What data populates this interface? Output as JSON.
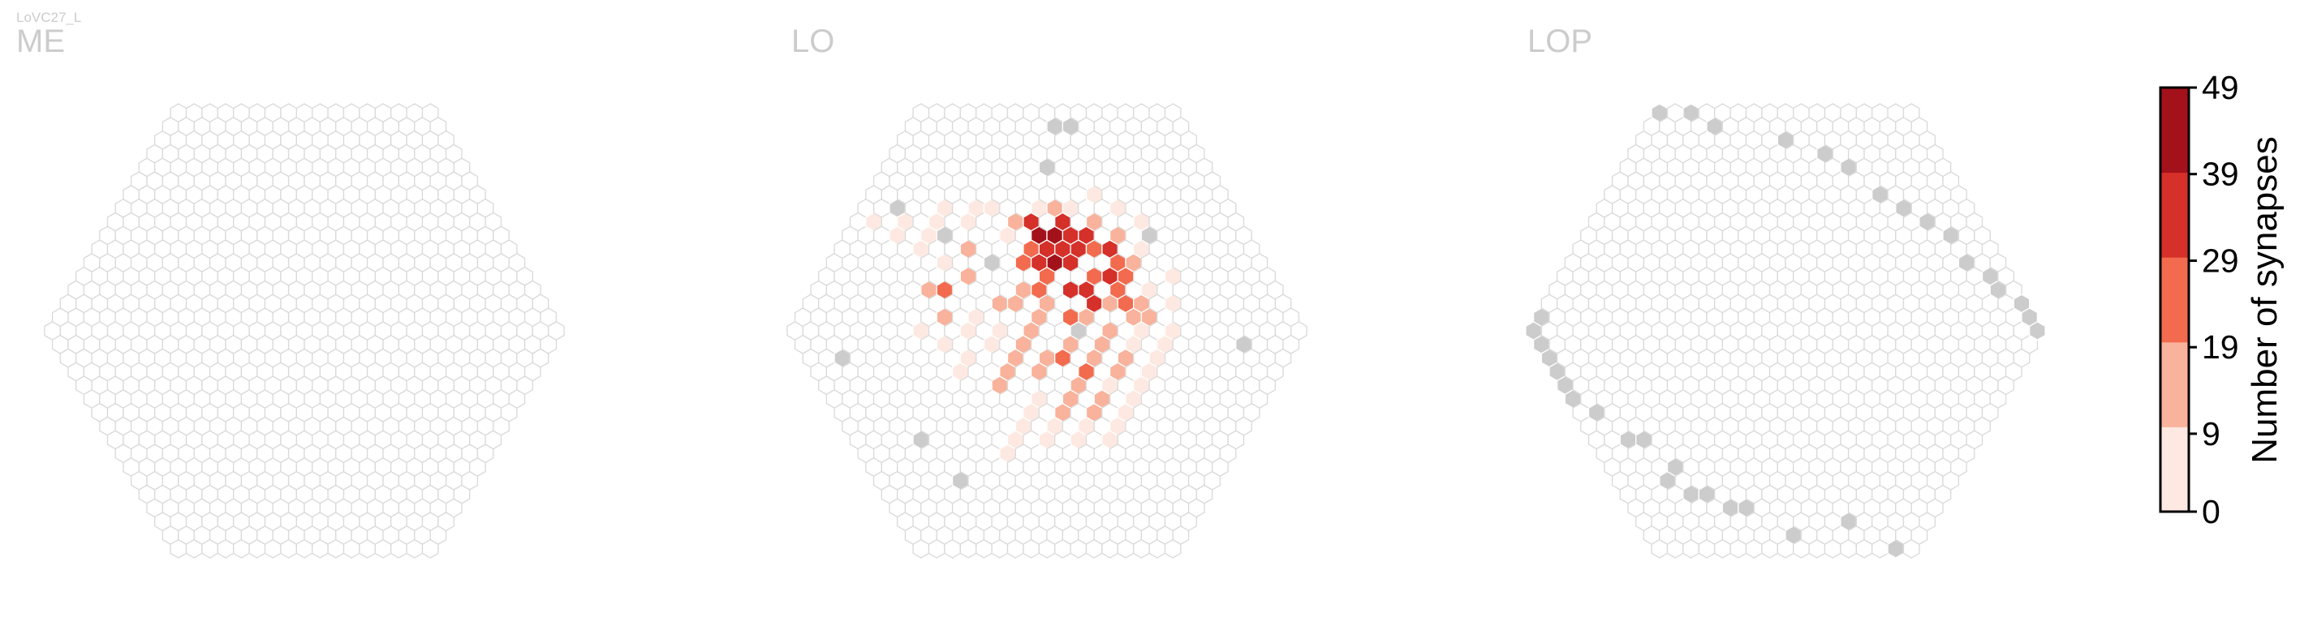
{
  "cell_type_label": "LoVC27_L",
  "colors": {
    "hex_edge": "#d9d9d9",
    "hex_fill_empty": "#ffffff",
    "hex_fill_other": "#cccccc",
    "panel_title": "#cccccc",
    "colormap": [
      "#fde9e1",
      "#f9b29b",
      "#f26b4f",
      "#d5302a",
      "#a3121a"
    ]
  },
  "chart_data": {
    "type": "heatmap",
    "layout": "hexagonal columns in three optic-lobe neuropils",
    "panels": [
      {
        "name": "ME",
        "title": "ME",
        "radius_in_cells": 16,
        "occupied_columns": [],
        "synapse_columns": []
      },
      {
        "name": "LO",
        "title": "LO",
        "radius_in_cells": 16,
        "occupied_columns": [
          [
            -12,
            8
          ],
          [
            -11,
            11
          ],
          [
            -14,
            2
          ],
          [
            -15,
            -3
          ],
          [
            -16,
            -4
          ],
          [
            -11,
            -15
          ],
          [
            -9,
            -13
          ],
          [
            -7,
            -11
          ],
          [
            -5,
            -9
          ],
          [
            -3,
            -7
          ],
          [
            -1,
            -5
          ],
          [
            6,
            -12
          ],
          [
            2,
            0
          ],
          [
            8,
            -15
          ],
          [
            9,
            -15
          ],
          [
            12,
            1
          ],
          [
            10,
            -7
          ]
        ],
        "synapse_columns": [
          [
            3,
            -7,
            42
          ],
          [
            4,
            -6,
            39
          ],
          [
            5,
            -8,
            38
          ],
          [
            5,
            -6,
            36
          ],
          [
            6,
            -7,
            37
          ],
          [
            4,
            -5,
            34
          ],
          [
            3,
            -6,
            33
          ],
          [
            5,
            -7,
            33
          ],
          [
            2,
            -5,
            31
          ],
          [
            6,
            -4,
            32
          ],
          [
            7,
            -6,
            30
          ],
          [
            3,
            -8,
            34
          ],
          [
            3,
            -5,
            49
          ],
          [
            4,
            -7,
            45
          ],
          [
            4,
            -3,
            35
          ],
          [
            3,
            -3,
            37
          ],
          [
            6,
            -3,
            26
          ],
          [
            6,
            -2,
            28
          ],
          [
            7,
            -4,
            29
          ],
          [
            4,
            -2,
            30
          ],
          [
            2,
            -4,
            24
          ],
          [
            5,
            -4,
            22
          ],
          [
            6,
            -6,
            27
          ],
          [
            7,
            -5,
            25
          ],
          [
            2,
            -6,
            23
          ],
          [
            1,
            -5,
            27
          ],
          [
            1,
            -3,
            21
          ],
          [
            0,
            2,
            20
          ],
          [
            1,
            3,
            24
          ],
          [
            2,
            -1,
            27
          ],
          [
            3,
            1,
            18
          ],
          [
            1,
            1,
            17
          ],
          [
            2,
            2,
            16
          ],
          [
            3,
            -1,
            15
          ],
          [
            4,
            0,
            14
          ],
          [
            5,
            -2,
            15
          ],
          [
            6,
            -1,
            12
          ],
          [
            7,
            -2,
            13
          ],
          [
            1,
            -2,
            18
          ],
          [
            0,
            -1,
            13
          ],
          [
            -1,
            2,
            14
          ],
          [
            -2,
            1,
            12
          ],
          [
            -2,
            3,
            11
          ],
          [
            -3,
            2,
            13
          ],
          [
            -4,
            3,
            12
          ],
          [
            -5,
            4,
            11
          ],
          [
            0,
            4,
            12
          ],
          [
            -1,
            5,
            13
          ],
          [
            0,
            6,
            11
          ],
          [
            1,
            5,
            10
          ],
          [
            -2,
            6,
            12
          ],
          [
            -1,
            0,
            10
          ],
          [
            -1,
            -2,
            14
          ],
          [
            -2,
            -2,
            16
          ],
          [
            -3,
            0,
            9
          ],
          [
            0,
            -3,
            12
          ],
          [
            -3,
            -4,
            18
          ],
          [
            -5,
            -3,
            20
          ],
          [
            -6,
            -3,
            12
          ],
          [
            -6,
            -1,
            10
          ],
          [
            5,
            1,
            9
          ],
          [
            4,
            2,
            10
          ],
          [
            3,
            3,
            11
          ],
          [
            2,
            4,
            9
          ],
          [
            6,
            0,
            8
          ],
          [
            7,
            -1,
            10
          ],
          [
            8,
            -3,
            9
          ],
          [
            8,
            -5,
            12
          ],
          [
            8,
            -7,
            11
          ],
          [
            5,
            -9,
            10
          ],
          [
            4,
            -9,
            9
          ],
          [
            6,
            -9,
            8
          ],
          [
            7,
            -8,
            13
          ],
          [
            2,
            -8,
            10
          ],
          [
            1,
            -7,
            9
          ],
          [
            -3,
            5,
            8
          ],
          [
            -4,
            6,
            7
          ],
          [
            -5,
            7,
            6
          ],
          [
            -6,
            8,
            5
          ],
          [
            -7,
            9,
            4
          ],
          [
            -4,
            8,
            5
          ],
          [
            -3,
            7,
            6
          ],
          [
            -1,
            7,
            5
          ],
          [
            -2,
            8,
            4
          ],
          [
            -4,
            -5,
            6
          ],
          [
            -5,
            -6,
            5
          ],
          [
            -6,
            -7,
            4
          ],
          [
            -7,
            -8,
            3
          ],
          [
            -5,
            -8,
            4
          ],
          [
            -4,
            -7,
            5
          ],
          [
            -3,
            -8,
            4
          ],
          [
            -2,
            -9,
            3
          ],
          [
            -6,
            2,
            5
          ],
          [
            -7,
            3,
            4
          ],
          [
            -7,
            1,
            3
          ],
          [
            -8,
            0,
            3
          ],
          [
            -5,
            0,
            4
          ],
          [
            -4,
            1,
            6
          ],
          [
            -4,
            -1,
            8
          ],
          [
            -2,
            -6,
            11
          ],
          [
            -1,
            -8,
            9
          ],
          [
            0,
            -9,
            7
          ],
          [
            1,
            -9,
            6
          ],
          [
            9,
            -6,
            4
          ],
          [
            10,
            -8,
            3
          ],
          [
            9,
            -9,
            5
          ],
          [
            8,
            -10,
            3
          ],
          [
            10,
            -4,
            3
          ],
          [
            9,
            -2,
            5
          ],
          [
            8,
            0,
            4
          ],
          [
            7,
            1,
            3
          ],
          [
            6,
            2,
            5
          ],
          [
            5,
            3,
            4
          ],
          [
            4,
            4,
            5
          ],
          [
            3,
            5,
            6
          ],
          [
            2,
            6,
            4
          ],
          [
            1,
            7,
            3
          ],
          [
            0,
            8,
            4
          ]
        ]
      },
      {
        "name": "LOP",
        "title": "LOP",
        "radius_in_cells": 16,
        "occupied_columns": [
          [
            -7,
            15
          ],
          [
            -3,
            14
          ],
          [
            -9,
            13
          ],
          [
            -10,
            13
          ],
          [
            -11,
            12
          ],
          [
            -12,
            12
          ],
          [
            -13,
            11
          ],
          [
            -12,
            10
          ],
          [
            -13,
            8
          ],
          [
            -14,
            8
          ],
          [
            -15,
            6
          ],
          [
            -16,
            5
          ],
          [
            -16,
            4
          ],
          [
            -16,
            3
          ],
          [
            -16,
            2
          ],
          [
            -16,
            1
          ],
          [
            -16,
            0
          ],
          [
            -15,
            -1
          ],
          [
            -16,
            -2
          ],
          [
            -15,
            -3
          ],
          [
            -15,
            -4
          ],
          [
            -15,
            -5
          ],
          [
            -14,
            -6
          ],
          [
            -13,
            -7
          ],
          [
            -13,
            -8
          ],
          [
            -12,
            -9
          ],
          [
            -11,
            -10
          ],
          [
            -11,
            -11
          ],
          [
            -9,
            -13
          ],
          [
            -7,
            -14
          ],
          [
            -5,
            -15
          ],
          [
            -3,
            -15
          ],
          [
            0,
            -16
          ],
          [
            2,
            -16
          ],
          [
            3,
            -15
          ],
          [
            7,
            -14
          ],
          [
            9,
            -13
          ],
          [
            10,
            -12
          ],
          [
            11,
            -10
          ],
          [
            12,
            -9
          ],
          [
            13,
            -8
          ],
          [
            14,
            -7
          ],
          [
            14,
            -5
          ],
          [
            15,
            -4
          ],
          [
            15,
            -3
          ],
          [
            16,
            -2
          ],
          [
            16,
            -1
          ],
          [
            16,
            0
          ],
          [
            16,
            1
          ],
          [
            16,
            2
          ],
          [
            15,
            3
          ],
          [
            15,
            4
          ],
          [
            14,
            6
          ],
          [
            13,
            8
          ],
          [
            11,
            10
          ],
          [
            12,
            11
          ],
          [
            4,
            15
          ],
          [
            3,
            16
          ],
          [
            -1,
            16
          ]
        ],
        "synapse_columns": []
      }
    ],
    "colorbar": {
      "label": "Number of synapses",
      "ticks": [
        0,
        9,
        19,
        29,
        39,
        49
      ],
      "vmin": 0,
      "vmax": 49,
      "bins": 5
    }
  }
}
